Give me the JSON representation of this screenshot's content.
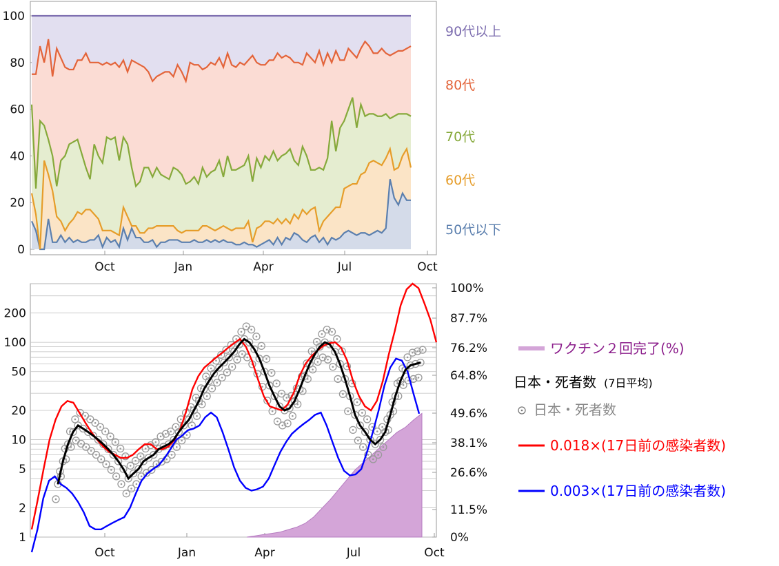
{
  "chart_data": [
    {
      "type": "area",
      "stacked": true,
      "x_ticks": [
        "Oct",
        "Jan",
        "Apr",
        "Jul",
        "Oct"
      ],
      "y_ticks": [
        "0",
        "20",
        "40",
        "60",
        "80",
        "100"
      ],
      "ylim": [
        0,
        100
      ],
      "series": [
        {
          "name": "50代以下",
          "color": "#5b7fae",
          "values": [
            12,
            8,
            0,
            0,
            13,
            3,
            3,
            6,
            3,
            5,
            3,
            4,
            3,
            3,
            4,
            4,
            6,
            1,
            5,
            3,
            4,
            1,
            9,
            4,
            9,
            5,
            5,
            3,
            3,
            4,
            1,
            3,
            3,
            4,
            4,
            4,
            3,
            3,
            3,
            4,
            3,
            3,
            4,
            3,
            4,
            3,
            4,
            3,
            3,
            2,
            2,
            3,
            2,
            2,
            1,
            2,
            3,
            4,
            2,
            5,
            2,
            5,
            4,
            7,
            6,
            4,
            3,
            5,
            6,
            3,
            5,
            2,
            5,
            4,
            5,
            7,
            8,
            7,
            6,
            7,
            7,
            6,
            7,
            8,
            7,
            9,
            30,
            22,
            19,
            24,
            21,
            21
          ]
        },
        {
          "name": "60代",
          "color": "#e69d2a",
          "values": [
            24,
            15,
            0,
            38,
            32,
            25,
            14,
            12,
            8,
            11,
            13,
            16,
            15,
            17,
            17,
            15,
            13,
            8,
            8,
            8,
            7,
            6,
            18,
            14,
            10,
            10,
            7,
            7,
            9,
            9,
            10,
            10,
            10,
            10,
            10,
            8,
            7,
            8,
            8,
            8,
            8,
            10,
            10,
            9,
            8,
            9,
            10,
            9,
            8,
            9,
            9,
            9,
            12,
            3,
            9,
            10,
            12,
            12,
            11,
            13,
            11,
            13,
            11,
            15,
            13,
            17,
            15,
            17,
            18,
            8,
            12,
            14,
            16,
            18,
            18,
            26,
            27,
            28,
            28,
            32,
            33,
            37,
            38,
            37,
            36,
            39,
            43,
            34,
            35,
            40,
            43,
            35
          ]
        },
        {
          "name": "70代",
          "color": "#86a93b",
          "values": [
            62,
            26,
            55,
            53,
            47,
            40,
            27,
            38,
            40,
            45,
            46,
            47,
            41,
            35,
            30,
            45,
            40,
            37,
            48,
            47,
            48,
            38,
            48,
            45,
            35,
            27,
            29,
            35,
            35,
            31,
            35,
            32,
            31,
            30,
            35,
            34,
            32,
            28,
            29,
            31,
            28,
            35,
            31,
            33,
            34,
            38,
            31,
            40,
            34,
            34,
            35,
            36,
            40,
            29,
            39,
            35,
            40,
            38,
            42,
            38,
            40,
            41,
            43,
            38,
            36,
            44,
            40,
            34,
            34,
            35,
            34,
            39,
            55,
            42,
            52,
            55,
            60,
            65,
            52,
            62,
            57,
            58,
            58,
            57,
            57,
            58,
            56,
            57,
            58,
            58,
            58,
            57
          ]
        },
        {
          "name": "80代",
          "color": "#e3643a",
          "values": [
            75,
            75,
            87,
            80,
            90,
            74,
            86,
            82,
            78,
            77,
            77,
            81,
            81,
            84,
            80,
            80,
            80,
            79,
            80,
            79,
            80,
            78,
            81,
            76,
            81,
            80,
            79,
            78,
            76,
            72,
            74,
            75,
            76,
            76,
            74,
            79,
            76,
            72,
            80,
            79,
            79,
            77,
            78,
            80,
            79,
            82,
            78,
            84,
            79,
            78,
            80,
            79,
            81,
            83,
            80,
            79,
            79,
            81,
            81,
            84,
            82,
            83,
            82,
            80,
            80,
            79,
            84,
            82,
            80,
            85,
            79,
            84,
            80,
            85,
            81,
            81,
            86,
            84,
            82,
            86,
            89,
            87,
            84,
            84,
            86,
            84,
            83,
            84,
            85,
            85,
            86,
            87
          ]
        },
        {
          "name": "90代以上",
          "color": "#7e6fb0",
          "values": [
            100,
            100,
            100,
            100,
            100,
            100,
            100,
            100,
            100,
            100,
            100,
            100,
            100,
            100,
            100,
            100,
            100,
            100,
            100,
            100,
            100,
            100,
            100,
            100,
            100,
            100,
            100,
            100,
            100,
            100,
            100,
            100,
            100,
            100,
            100,
            100,
            100,
            100,
            100,
            100,
            100,
            100,
            100,
            100,
            100,
            100,
            100,
            100,
            100,
            100,
            100,
            100,
            100,
            100,
            100,
            100,
            100,
            100,
            100,
            100,
            100,
            100,
            100,
            100,
            100,
            100,
            100,
            100,
            100,
            100,
            100,
            100,
            100,
            100,
            100,
            100,
            100,
            100,
            100,
            100,
            100,
            100,
            100,
            100,
            100,
            100,
            100,
            100,
            100,
            100,
            100,
            100
          ]
        }
      ]
    },
    {
      "type": "line",
      "y_scale": "log",
      "x_ticks": [
        "Oct",
        "Jan",
        "Apr",
        "Jul",
        "Oct"
      ],
      "y_ticks": [
        "1",
        "2",
        "5",
        "10",
        "20",
        "50",
        "100",
        "200"
      ],
      "y2_ticks": [
        "0%",
        "11.5%",
        "26.6%",
        "38.1%",
        "49.6%",
        "64.8%",
        "76.2%",
        "87.7%",
        "100%"
      ],
      "ylim": [
        1,
        400
      ],
      "legend": [
        {
          "label": "ワクチン２回完了(%)",
          "color": "#8c1f8c"
        },
        {
          "label": "日本・死者数",
          "note": "(7日平均)",
          "color": "#000000"
        },
        {
          "label": "日本・死者数",
          "color": "#888888"
        },
        {
          "label": "0.018×(17日前の感染者数)",
          "color": "#ff0000"
        },
        {
          "label": "0.003×(17日前の感染者数)",
          "color": "#0000ff"
        }
      ],
      "series": [
        {
          "name": "0.018×(17日前の感染者数)",
          "color": "#ff0000",
          "values": [
            1.2,
            2.4,
            5,
            10,
            16,
            22,
            25,
            24,
            19,
            15,
            12,
            10,
            8.5,
            7.5,
            7,
            6.5,
            6.5,
            7,
            8,
            9,
            9,
            8,
            8,
            8.5,
            10,
            13,
            20,
            33,
            45,
            55,
            62,
            70,
            78,
            88,
            98,
            108,
            90,
            65,
            42,
            28,
            22,
            21,
            20,
            23,
            30,
            45,
            60,
            72,
            82,
            92,
            98,
            100,
            88,
            65,
            40,
            28,
            22,
            20,
            25,
            40,
            75,
            130,
            240,
            350,
            400,
            360,
            250,
            170,
            100
          ]
        },
        {
          "name": "0.003×(17日前の感染者数)",
          "color": "#0000ff",
          "values": [
            0.7,
            1.2,
            2.5,
            3.8,
            4.2,
            3.5,
            3.2,
            2.8,
            2.3,
            1.8,
            1.3,
            1.2,
            1.2,
            1.3,
            1.4,
            1.5,
            1.6,
            2.0,
            2.8,
            3.8,
            4.5,
            5.0,
            5.5,
            6.5,
            8,
            10,
            11,
            12.5,
            13,
            14,
            17,
            19,
            17,
            12,
            8,
            5.2,
            3.8,
            3.2,
            3,
            3.1,
            3.3,
            4,
            5.5,
            7.5,
            9.5,
            11.5,
            13,
            14.5,
            16,
            18,
            19,
            14,
            9.5,
            6.5,
            4.8,
            4.3,
            4.4,
            5.0,
            7.5,
            12,
            20,
            36,
            55,
            68,
            65,
            50,
            30,
            18.5
          ]
        },
        {
          "name": "日本・死者数 (7日平均)",
          "color": "#000000",
          "values": [
            3.5,
            6,
            9,
            12,
            14,
            13,
            12,
            11,
            10,
            9,
            8,
            7,
            6,
            5,
            4,
            4.5,
            5,
            6,
            6.5,
            7,
            8,
            8.5,
            9,
            10,
            12,
            14,
            16,
            20,
            25,
            33,
            40,
            48,
            55,
            62,
            70,
            80,
            95,
            108,
            100,
            85,
            68,
            50,
            36,
            28,
            22,
            20,
            21,
            25,
            33,
            45,
            60,
            75,
            90,
            100,
            95,
            80,
            60,
            42,
            28,
            18,
            14,
            12,
            10,
            9,
            10,
            12,
            18,
            28,
            40,
            52,
            58,
            60,
            62
          ]
        }
      ],
      "vaccine_pct": [
        0,
        0.5,
        1,
        1.5,
        2,
        3,
        4,
        5.5,
        8,
        11.5,
        15,
        19,
        23,
        27,
        30,
        33,
        36,
        39,
        42,
        44,
        47,
        49.6
      ]
    }
  ]
}
